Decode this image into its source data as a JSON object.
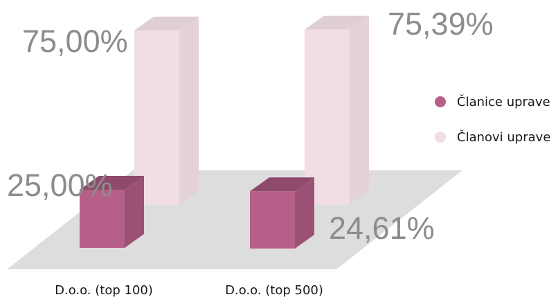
{
  "chart_data": {
    "type": "bar",
    "categories": [
      "D.o.o. (top 100)",
      "D.o.o. (top 500)"
    ],
    "series": [
      {
        "name": "Članice uprave",
        "values": [
          25.0,
          24.61
        ],
        "labels": [
          "25,00%",
          "24,61%"
        ],
        "color": "#b65f88"
      },
      {
        "name": "Članovi uprave",
        "values": [
          75.0,
          75.39
        ],
        "labels": [
          "75,00%",
          "75,39%"
        ],
        "color": "#f0dde6"
      }
    ],
    "title": "",
    "xlabel": "",
    "ylabel": "",
    "ylim": [
      0,
      100
    ],
    "legend_position": "right",
    "grid": false,
    "style": "3d-columns",
    "colors": {
      "floor": "#dddddd",
      "label_text": "#8c8c8c",
      "category_text": "#1a1a1a"
    }
  }
}
